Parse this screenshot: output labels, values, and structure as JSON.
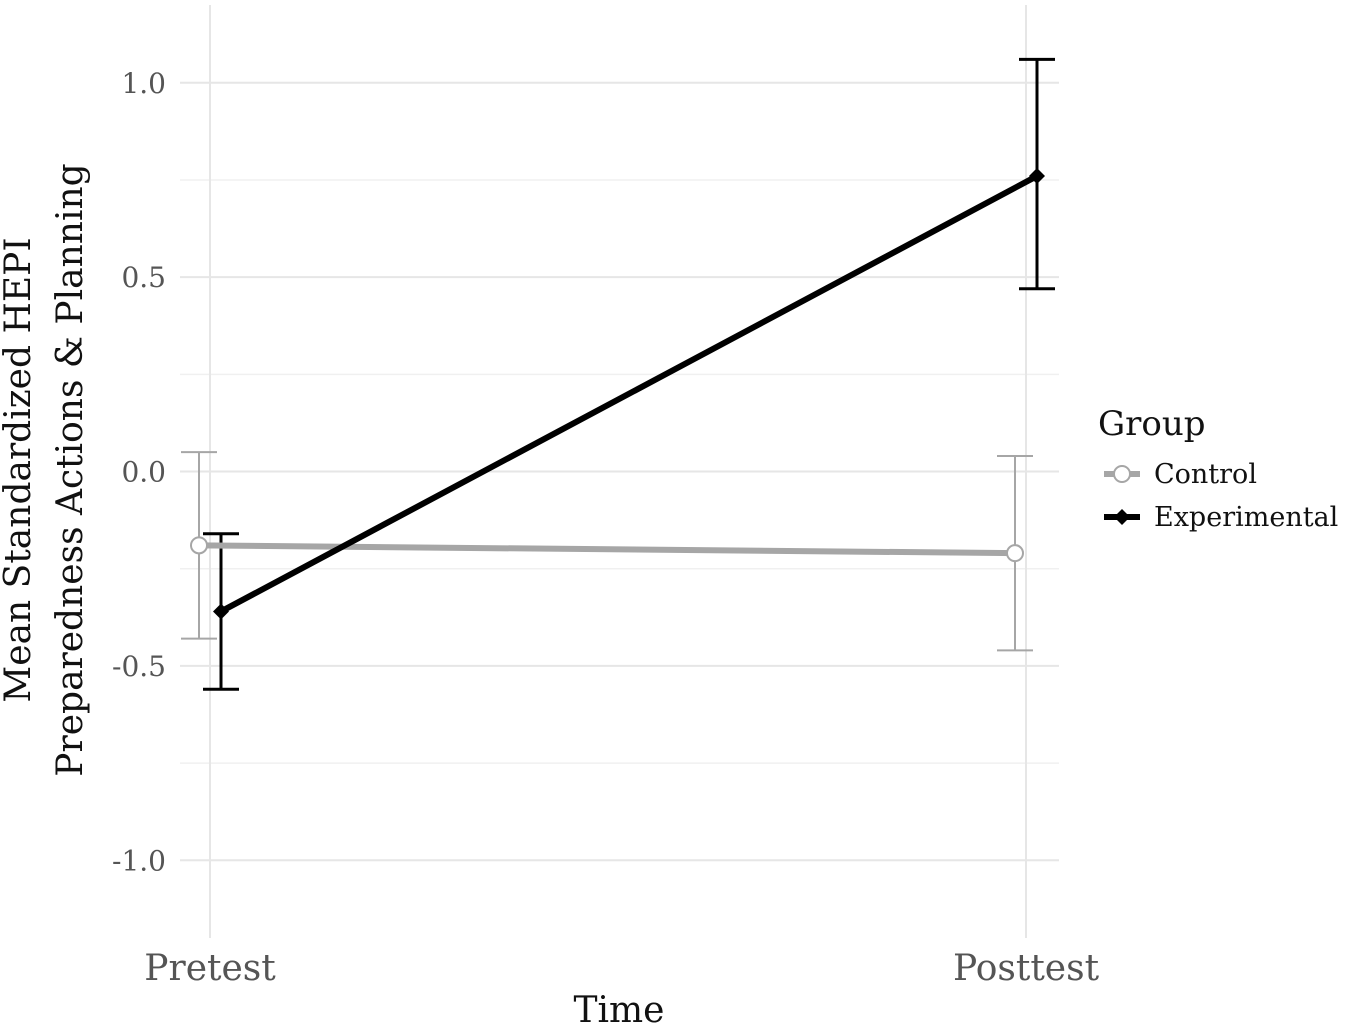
{
  "chart_data": {
    "type": "line",
    "xlabel": "Time",
    "ylabel_lines": [
      "Mean Standardized HEPI",
      "Preparedness Actions & Planning"
    ],
    "categories": [
      "Pretest",
      "Posttest"
    ],
    "ylim": [
      -1.2,
      1.2
    ],
    "yticks": [
      1.0,
      0.5,
      0.0,
      -0.5,
      -1.0
    ],
    "ytick_labels": [
      "1.0",
      "0.5",
      "0.0",
      "-0.5",
      "-1.0"
    ],
    "grid": true,
    "legend": {
      "title": "Group",
      "placement": "right"
    },
    "series": [
      {
        "name": "Control",
        "color": "#a6a6a6",
        "marker": "open-circle",
        "values": [
          -0.19,
          -0.21
        ],
        "ci_low": [
          -0.43,
          -0.46
        ],
        "ci_high": [
          0.05,
          0.04
        ]
      },
      {
        "name": "Experimental",
        "color": "#000000",
        "marker": "filled-diamond",
        "values": [
          -0.36,
          0.76
        ],
        "ci_low": [
          -0.56,
          0.47
        ],
        "ci_high": [
          -0.16,
          1.06
        ]
      }
    ]
  }
}
